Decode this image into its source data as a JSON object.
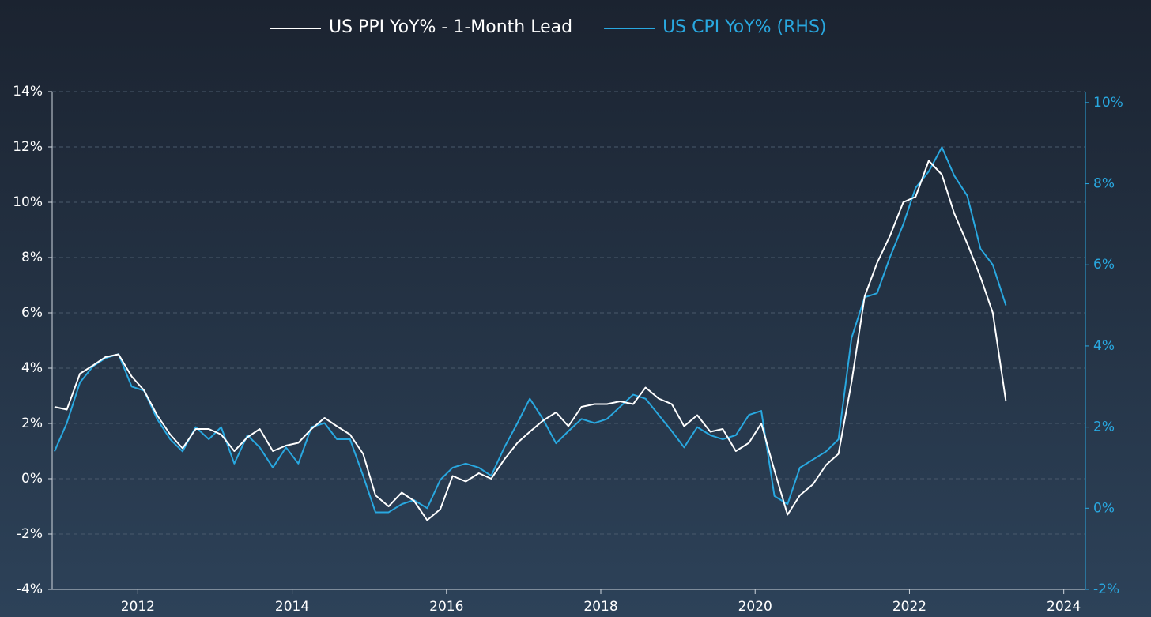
{
  "chart_data": {
    "type": "line",
    "x": [
      2010.92,
      2011.08,
      2011.25,
      2011.42,
      2011.58,
      2011.75,
      2011.92,
      2012.08,
      2012.25,
      2012.42,
      2012.58,
      2012.75,
      2012.92,
      2013.08,
      2013.25,
      2013.42,
      2013.58,
      2013.75,
      2013.92,
      2014.08,
      2014.25,
      2014.42,
      2014.58,
      2014.75,
      2014.92,
      2015.08,
      2015.25,
      2015.42,
      2015.58,
      2015.75,
      2015.92,
      2016.08,
      2016.25,
      2016.42,
      2016.58,
      2016.75,
      2016.92,
      2017.08,
      2017.25,
      2017.42,
      2017.58,
      2017.75,
      2017.92,
      2018.08,
      2018.25,
      2018.42,
      2018.58,
      2018.75,
      2018.92,
      2019.08,
      2019.25,
      2019.42,
      2019.58,
      2019.75,
      2019.92,
      2020.08,
      2020.25,
      2020.42,
      2020.58,
      2020.75,
      2020.92,
      2021.08,
      2021.25,
      2021.42,
      2021.58,
      2021.75,
      2021.92,
      2022.08,
      2022.25,
      2022.42,
      2022.58,
      2022.75,
      2022.92,
      2023.08,
      2023.25
    ],
    "series": [
      {
        "name": "US PPI YoY% - 1-Month Lead",
        "color": "#ffffff",
        "values": [
          2.6,
          2.5,
          3.8,
          4.1,
          4.4,
          4.5,
          3.7,
          3.2,
          2.3,
          1.6,
          1.1,
          1.8,
          1.8,
          1.6,
          1.0,
          1.5,
          1.8,
          1.0,
          1.2,
          1.3,
          1.8,
          2.2,
          1.9,
          1.6,
          0.9,
          -0.6,
          -1.0,
          -0.5,
          -0.8,
          -1.5,
          -1.1,
          0.1,
          -0.1,
          0.2,
          0.0,
          0.7,
          1.3,
          1.7,
          2.1,
          2.4,
          1.9,
          2.6,
          2.7,
          2.7,
          2.8,
          2.7,
          3.3,
          2.9,
          2.7,
          1.9,
          2.3,
          1.7,
          1.8,
          1.0,
          1.3,
          2.0,
          0.3,
          -1.3,
          -0.6,
          -0.2,
          0.5,
          0.9,
          3.5,
          6.6,
          7.8,
          8.8,
          10.0,
          10.2,
          11.5,
          11.0,
          9.6,
          8.5,
          7.3,
          6.0,
          2.8
        ]
      },
      {
        "name": "US CPI YoY% (RHS)",
        "color": "#29a8e0",
        "axis": "y2",
        "values": [
          1.4,
          2.1,
          3.1,
          3.5,
          3.7,
          3.8,
          3.0,
          2.9,
          2.2,
          1.7,
          1.4,
          2.0,
          1.7,
          2.0,
          1.1,
          1.8,
          1.5,
          1.0,
          1.5,
          1.1,
          2.0,
          2.1,
          1.7,
          1.7,
          0.8,
          -0.1,
          -0.1,
          0.1,
          0.2,
          0.0,
          0.7,
          1.0,
          1.1,
          1.0,
          0.8,
          1.5,
          2.1,
          2.7,
          2.2,
          1.6,
          1.9,
          2.2,
          2.1,
          2.2,
          2.5,
          2.8,
          2.7,
          2.3,
          1.9,
          1.5,
          2.0,
          1.8,
          1.7,
          1.8,
          2.3,
          2.4,
          0.3,
          0.1,
          1.0,
          1.2,
          1.4,
          1.7,
          4.2,
          5.2,
          5.3,
          6.2,
          7.0,
          7.9,
          8.3,
          8.9,
          8.2,
          7.7,
          6.4,
          6.0,
          5.0
        ]
      }
    ],
    "xlim": [
      2010.89,
      2024.28
    ],
    "xticks": [
      2012,
      2014,
      2016,
      2018,
      2020,
      2022,
      2024
    ],
    "ylim": [
      -4,
      14
    ],
    "yticks": [
      {
        "value": -4,
        "label": "-4%"
      },
      {
        "value": -2,
        "label": "-2%"
      },
      {
        "value": 0,
        "label": "0%"
      },
      {
        "value": 2,
        "label": "2%"
      },
      {
        "value": 4,
        "label": "4%"
      },
      {
        "value": 6,
        "label": "6%"
      },
      {
        "value": 8,
        "label": "8%"
      },
      {
        "value": 10,
        "label": "10%"
      },
      {
        "value": 12,
        "label": "12%"
      },
      {
        "value": 14,
        "label": "14%"
      }
    ],
    "y2lim": [
      -2,
      10.27
    ],
    "y2ticks": [
      {
        "value": -2,
        "label": "-2%"
      },
      {
        "value": 0,
        "label": "0%"
      },
      {
        "value": 2,
        "label": "2%"
      },
      {
        "value": 4,
        "label": "4%"
      },
      {
        "value": 6,
        "label": "6%"
      },
      {
        "value": 8,
        "label": "8%"
      },
      {
        "value": 10,
        "label": "10%"
      }
    ],
    "grid": true
  }
}
